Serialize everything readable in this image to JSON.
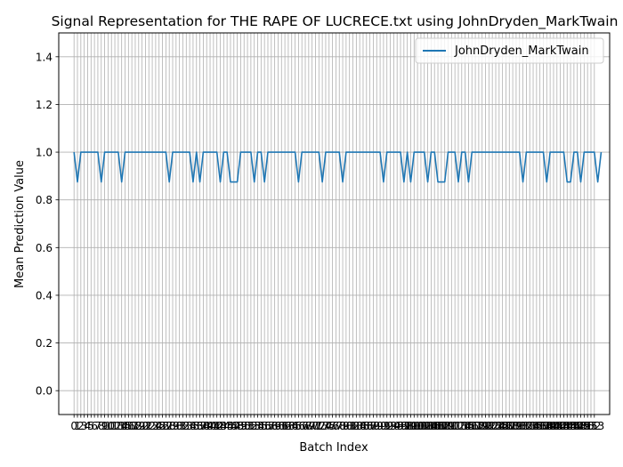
{
  "chart_data": {
    "type": "line",
    "title": "Signal Representation for THE RAPE OF LUCRECE.txt using JohnDryden_MarkTwain",
    "xlabel": "Batch Index",
    "ylabel": "Mean Prediction Value",
    "ylim": [
      -0.1,
      1.5
    ],
    "xlim": [
      -4.5,
      157.5
    ],
    "yticks": [
      0.0,
      0.2,
      0.4,
      0.6,
      0.8,
      1.0,
      1.2,
      1.4
    ],
    "ytick_labels": [
      "0.0",
      "0.2",
      "0.4",
      "0.6",
      "0.8",
      "1.0",
      "1.2",
      "1.4"
    ],
    "xticks_count": 154,
    "grid": true,
    "legend_position": "upper right",
    "series": [
      {
        "name": "JohnDryden_MarkTwain",
        "color": "#1f77b4",
        "values": [
          1,
          0.875,
          1,
          1,
          1,
          1,
          1,
          1,
          0.875,
          1,
          1,
          1,
          1,
          1,
          0.875,
          1,
          1,
          1,
          1,
          1,
          1,
          1,
          1,
          1,
          1,
          1,
          1,
          1,
          0.875,
          1,
          1,
          1,
          1,
          1,
          1,
          0.875,
          1,
          0.875,
          1,
          1,
          1,
          1,
          1,
          0.875,
          1,
          1,
          0.875,
          0.875,
          0.875,
          1,
          1,
          1,
          1,
          0.875,
          1,
          1,
          0.875,
          1,
          1,
          1,
          1,
          1,
          1,
          1,
          1,
          1,
          0.875,
          1,
          1,
          1,
          1,
          1,
          1,
          0.875,
          1,
          1,
          1,
          1,
          1,
          0.875,
          1,
          1,
          1,
          1,
          1,
          1,
          1,
          1,
          1,
          1,
          1,
          0.875,
          1,
          1,
          1,
          1,
          1,
          0.875,
          1,
          0.875,
          1,
          1,
          1,
          1,
          0.875,
          1,
          1,
          0.875,
          0.875,
          0.875,
          1,
          1,
          1,
          0.875,
          1,
          1,
          0.875,
          1,
          1,
          1,
          1,
          1,
          1,
          1,
          1,
          1,
          1,
          1,
          1,
          1,
          1,
          1,
          0.875,
          1,
          1,
          1,
          1,
          1,
          1,
          0.875,
          1,
          1,
          1,
          1,
          1,
          0.875,
          0.875,
          1,
          1,
          0.875,
          1,
          1,
          1,
          1,
          0.875,
          1
        ]
      }
    ]
  }
}
